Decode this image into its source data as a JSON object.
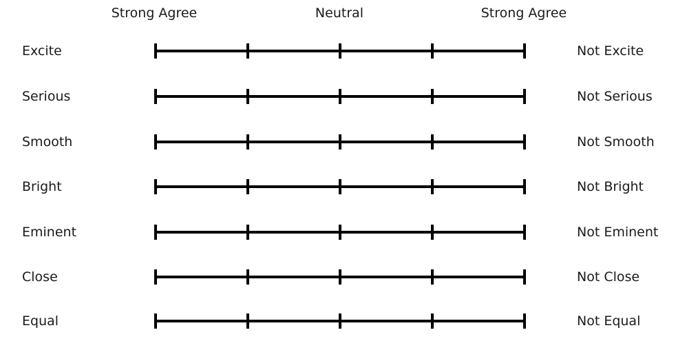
{
  "header": {
    "left_label": "Strong Agree",
    "center_label": "Neutral",
    "right_label": "Strong Agree"
  },
  "scale_points": 5,
  "rows": [
    {
      "left": "Excite",
      "right": "Not Excite"
    },
    {
      "left": "Serious",
      "right": "Not Serious"
    },
    {
      "left": "Smooth",
      "right": "Not Smooth"
    },
    {
      "left": "Bright",
      "right": "Not Bright"
    },
    {
      "left": "Eminent",
      "right": "Not Eminent"
    },
    {
      "left": "Close",
      "right": "Not Close"
    },
    {
      "left": "Equal",
      "right": "Not Equal"
    }
  ]
}
